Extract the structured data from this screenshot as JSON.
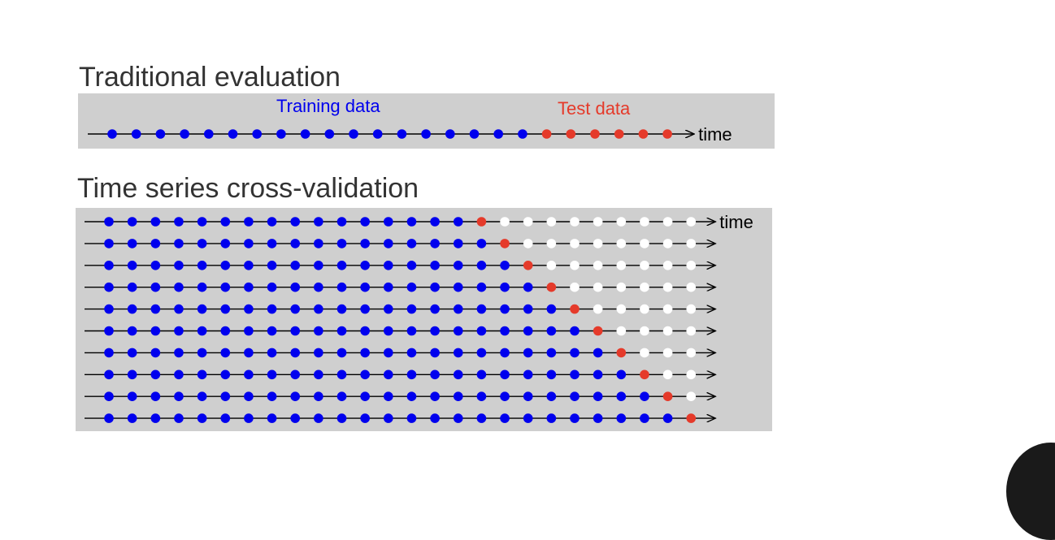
{
  "colors": {
    "training": "#0000ee",
    "test": "#e53a2a",
    "future": "#ffffff",
    "panel": "#cfcfcf",
    "heading": "#333333",
    "line": "#000000"
  },
  "traditional": {
    "title": "Traditional evaluation",
    "training_label": "Training data",
    "test_label": "Test data",
    "axis_label": "time",
    "training_points": 18,
    "test_points": 6
  },
  "cross_validation": {
    "title": "Time series cross-validation",
    "axis_label": "time",
    "total_points": 26,
    "folds": [
      {
        "training_points": 16,
        "test_point": 17
      },
      {
        "training_points": 17,
        "test_point": 18
      },
      {
        "training_points": 18,
        "test_point": 19
      },
      {
        "training_points": 19,
        "test_point": 20
      },
      {
        "training_points": 20,
        "test_point": 21
      },
      {
        "training_points": 21,
        "test_point": 22
      },
      {
        "training_points": 22,
        "test_point": 23
      },
      {
        "training_points": 23,
        "test_point": 24
      },
      {
        "training_points": 24,
        "test_point": 25
      },
      {
        "training_points": 25,
        "test_point": 26
      }
    ]
  }
}
